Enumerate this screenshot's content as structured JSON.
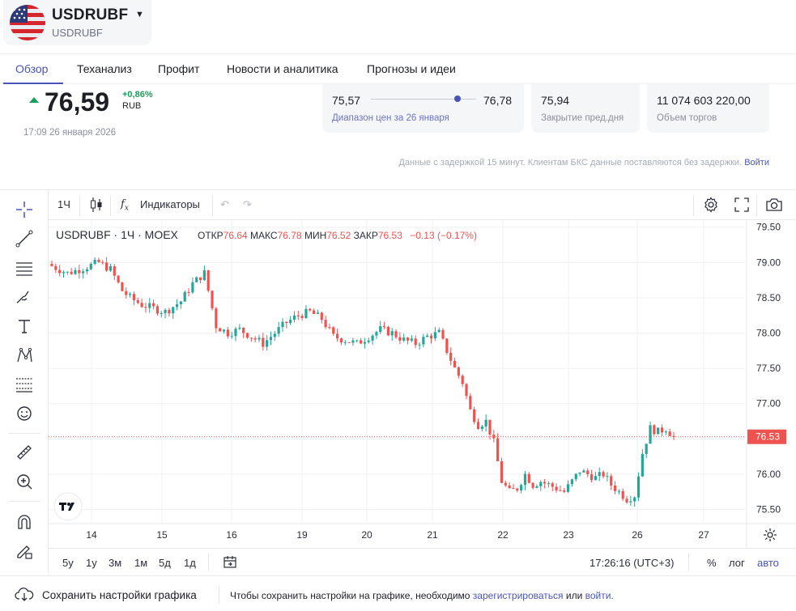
{
  "header": {
    "ticker": "USDRUBF",
    "ticker_sub": "USDRUBF"
  },
  "tabs": [
    "Обзор",
    "Теханализ",
    "Профит",
    "Новости и аналитика",
    "Прогнозы и идеи"
  ],
  "price": {
    "value": "76,59",
    "change": "+0,86%",
    "currency": "RUB",
    "timestamp": "17:09 26 января 2026"
  },
  "stats": {
    "range_low": "75,57",
    "range_high": "76,78",
    "range_label": "Диапазон цен за 26 января",
    "prev_close": "75,94",
    "prev_close_label": "Закрытие пред.дня",
    "volume": "11 074 603 220,00",
    "volume_label": "Объем торгов"
  },
  "delay_note": "Данные с задержкой 15 минут. Клиентам БКС данные поставляются без задержки.",
  "delay_link": "Войти",
  "toolbar": {
    "interval": "1Ч",
    "indicators": "Индикаторы"
  },
  "legend": {
    "symbol": "USDRUBF · 1Ч · MOEX",
    "open_lbl": "ОТКР",
    "open": "76.64",
    "high_lbl": "МАКС",
    "high": "76.78",
    "low_lbl": "МИН",
    "low": "76.52",
    "close_lbl": "ЗАКР",
    "close": "76.53",
    "change": "−0.13 (−0.17%)"
  },
  "bottom": {
    "ranges": [
      "5y",
      "1y",
      "3м",
      "1м",
      "5д",
      "1д"
    ],
    "time": "17:26:16 (UTC+3)",
    "pct": "%",
    "log": "лог",
    "auto": "авто"
  },
  "footer": {
    "save": "Сохранить настройки графика",
    "msg_pre": "Чтобы сохранить настройки на графике, необходимо",
    "register": "зарегистрироваться",
    "or": "или",
    "login": "войти."
  },
  "colors": {
    "up": "#26a69a",
    "down": "#ef5350",
    "accent": "#4a54b8",
    "positive": "#1a9f5a"
  },
  "chart_data": {
    "type": "candlestick",
    "y_ticks": [
      "79.50",
      "79.00",
      "78.50",
      "78.00",
      "77.50",
      "77.00",
      "76.50",
      "76.00",
      "75.50"
    ],
    "ylim": [
      75.3,
      79.6
    ],
    "x_ticks": [
      "14",
      "15",
      "16",
      "19",
      "20",
      "21",
      "22",
      "23",
      "26",
      "27"
    ],
    "last_price": "76.53",
    "close_path": [
      [
        0,
        78.95
      ],
      [
        4,
        78.85
      ],
      [
        8,
        78.92
      ],
      [
        12,
        79.0
      ],
      [
        15,
        78.9
      ],
      [
        18,
        78.6
      ],
      [
        20,
        78.5
      ],
      [
        23,
        78.4
      ],
      [
        26,
        78.35
      ],
      [
        29,
        78.3
      ],
      [
        33,
        78.45
      ],
      [
        36,
        78.7
      ],
      [
        39,
        78.85
      ],
      [
        42,
        78.1
      ],
      [
        45,
        78.0
      ],
      [
        48,
        78.05
      ],
      [
        51,
        77.95
      ],
      [
        54,
        77.85
      ],
      [
        57,
        78.0
      ],
      [
        60,
        78.15
      ],
      [
        63,
        78.25
      ],
      [
        66,
        78.3
      ],
      [
        69,
        78.2
      ],
      [
        72,
        77.95
      ],
      [
        75,
        77.9
      ],
      [
        78,
        77.85
      ],
      [
        81,
        77.95
      ],
      [
        84,
        78.05
      ],
      [
        87,
        78.0
      ],
      [
        90,
        77.9
      ],
      [
        93,
        77.85
      ],
      [
        96,
        77.95
      ],
      [
        99,
        78.0
      ],
      [
        101,
        77.75
      ],
      [
        103,
        77.5
      ],
      [
        105,
        77.3
      ],
      [
        107,
        76.9
      ],
      [
        109,
        76.7
      ],
      [
        111,
        76.75
      ],
      [
        113,
        76.45
      ],
      [
        115,
        75.9
      ],
      [
        117,
        75.75
      ],
      [
        119,
        75.8
      ],
      [
        121,
        76.0
      ],
      [
        123,
        75.85
      ],
      [
        125,
        75.9
      ],
      [
        127,
        75.85
      ],
      [
        129,
        75.8
      ],
      [
        131,
        75.75
      ],
      [
        133,
        75.9
      ],
      [
        135,
        76.05
      ],
      [
        137,
        76.0
      ],
      [
        139,
        75.95
      ],
      [
        141,
        76.0
      ],
      [
        143,
        75.85
      ],
      [
        145,
        75.75
      ],
      [
        147,
        75.65
      ],
      [
        149,
        75.7
      ],
      [
        151,
        76.3
      ],
      [
        153,
        76.65
      ],
      [
        155,
        76.6
      ],
      [
        157,
        76.65
      ],
      [
        159,
        76.53
      ]
    ]
  }
}
